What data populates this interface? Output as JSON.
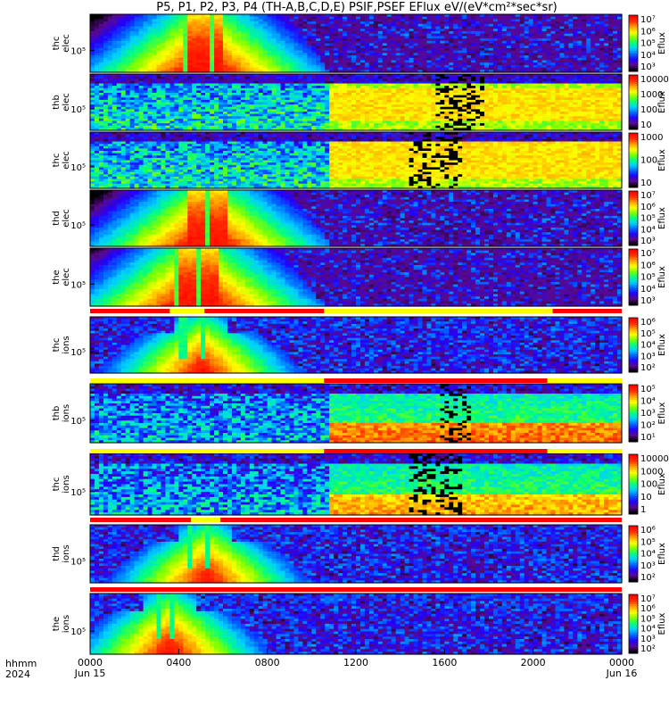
{
  "title": "P5, P1, P2, P3, P4 (TH-A,B,C,D,E) PSIF,PSEF EFlux eV/(eV*cm²*sec*sr)",
  "xaxis": {
    "label_time": "hhmm",
    "label_year": "2024",
    "ticks": [
      {
        "time": "0000",
        "date": "Jun 15"
      },
      {
        "time": "0400",
        "date": ""
      },
      {
        "time": "0800",
        "date": ""
      },
      {
        "time": "1200",
        "date": ""
      },
      {
        "time": "1600",
        "date": ""
      },
      {
        "time": "2000",
        "date": ""
      },
      {
        "time": "0000",
        "date": "Jun 16"
      }
    ]
  },
  "colors": {
    "colormap": [
      "#000000",
      "#5a0a8c",
      "#2200ff",
      "#0066ff",
      "#00d0ff",
      "#00ff80",
      "#80ff00",
      "#ffff00",
      "#ffa000",
      "#ff3000",
      "#ff0000"
    ]
  },
  "chart_data": {
    "type": "heatmap",
    "x_range_hours": [
      0,
      24
    ],
    "panels": [
      {
        "probe": "thc",
        "species": "elec",
        "ytick": "10⁵",
        "cbar_label": "Eflux",
        "cbar_ticks": [
          "10⁷",
          "10⁶",
          "10⁵",
          "10⁴",
          "10³"
        ]
      },
      {
        "probe": "thb",
        "species": "elec",
        "ytick": "10⁵",
        "cbar_label": "Eflux",
        "cbar_ticks": [
          "10000",
          "1000",
          "100",
          "10"
        ]
      },
      {
        "probe": "thc",
        "species": "elec",
        "ytick": "10⁵",
        "cbar_label": "Eflux",
        "cbar_ticks": [
          "1000",
          "100",
          "10"
        ]
      },
      {
        "probe": "thd",
        "species": "elec",
        "ytick": "10⁵",
        "cbar_label": "Eflux",
        "cbar_ticks": [
          "10⁷",
          "10⁶",
          "10⁵",
          "10⁴",
          "10³"
        ]
      },
      {
        "probe": "the",
        "species": "elec",
        "ytick": "10⁵",
        "cbar_label": "Eflux",
        "cbar_ticks": [
          "10⁷",
          "10⁶",
          "10⁵",
          "10⁴",
          "10³"
        ]
      },
      {
        "probe": "thc",
        "species": "ions",
        "ytick": "10⁵",
        "cbar_label": "Eflux",
        "cbar_ticks": [
          "10⁶",
          "10⁵",
          "10⁴",
          "10³",
          "10²"
        ]
      },
      {
        "probe": "thb",
        "species": "ions",
        "ytick": "10⁵",
        "cbar_label": "Eflux",
        "cbar_ticks": [
          "10⁵",
          "10⁴",
          "10³",
          "10²",
          "10¹"
        ]
      },
      {
        "probe": "thc",
        "species": "ions",
        "ytick": "10⁵",
        "cbar_label": "Eflux",
        "cbar_ticks": [
          "10000",
          "1000",
          "100",
          "10",
          "1"
        ]
      },
      {
        "probe": "thd",
        "species": "ions",
        "ytick": "10⁵",
        "cbar_label": "Eflux",
        "cbar_ticks": [
          "10⁶",
          "10⁵",
          "10⁴",
          "10³",
          "10²"
        ]
      },
      {
        "probe": "the",
        "species": "ions",
        "ytick": "10⁵",
        "cbar_label": "Eflux",
        "cbar_ticks": [
          "10⁷",
          "10⁶",
          "10⁵",
          "10⁴",
          "10³",
          "10²"
        ]
      }
    ]
  }
}
